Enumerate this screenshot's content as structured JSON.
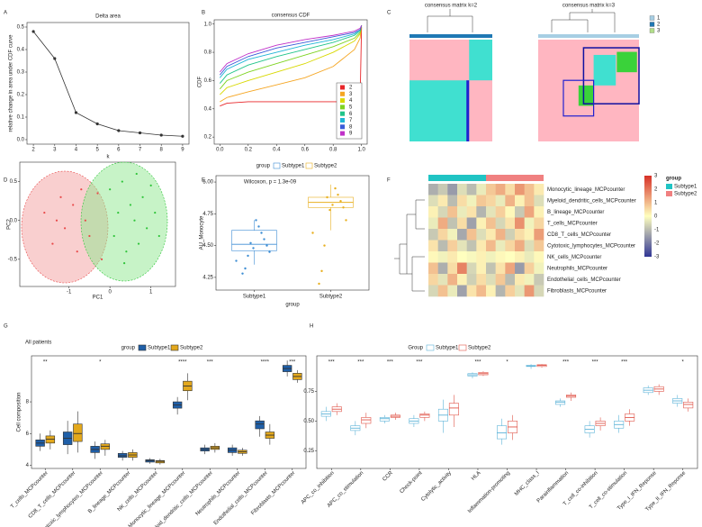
{
  "chart_data": [
    {
      "label": "A",
      "type": "line",
      "title": "Delta area",
      "xlabel": "k",
      "ylabel": "relative change in area under CDF curve",
      "x": [
        2,
        3,
        4,
        5,
        6,
        7,
        8,
        9
      ],
      "values": [
        0.48,
        0.36,
        0.12,
        0.07,
        0.04,
        0.03,
        0.02,
        0.015
      ],
      "color": "#333333",
      "xlim": [
        1.7,
        9.3
      ],
      "ylim": [
        -0.02,
        0.52
      ],
      "xticks": [
        2,
        3,
        4,
        5,
        6,
        7,
        8,
        9
      ],
      "yticks": [
        {
          "value": 0,
          "label": "0.0"
        },
        0.1,
        0.2,
        0.3,
        0.4,
        0.5
      ]
    },
    {
      "label": "B",
      "type": "cdf",
      "title": "consensus CDF",
      "ylabel": "CDF",
      "x": [
        0,
        0.05,
        0.2,
        0.4,
        0.6,
        0.8,
        0.95,
        0.99,
        1.0
      ],
      "xlim": [
        -0.04,
        1.04
      ],
      "ylim": [
        0.15,
        1.03
      ],
      "xticks": [
        {
          "value": 0,
          "label": "0.0"
        },
        0.2,
        0.4,
        0.6,
        0.8,
        {
          "value": 1,
          "label": "1.0"
        }
      ],
      "yticks": [
        0.2,
        0.4,
        0.6,
        0.8,
        {
          "value": 1,
          "label": "1.0"
        }
      ],
      "series": [
        {
          "name": "2",
          "color": "#e8262a",
          "values": [
            0.42,
            0.44,
            0.45,
            0.45,
            0.45,
            0.45,
            0.45,
            0.46,
            0.98
          ]
        },
        {
          "name": "3",
          "color": "#f5a623",
          "values": [
            0.45,
            0.48,
            0.52,
            0.57,
            0.62,
            0.7,
            0.82,
            0.9,
            0.99
          ]
        },
        {
          "name": "4",
          "color": "#d8d800",
          "values": [
            0.5,
            0.55,
            0.6,
            0.66,
            0.72,
            0.8,
            0.88,
            0.93,
            0.99
          ]
        },
        {
          "name": "5",
          "color": "#7ed321",
          "values": [
            0.54,
            0.6,
            0.66,
            0.72,
            0.78,
            0.84,
            0.9,
            0.94,
            0.99
          ]
        },
        {
          "name": "6",
          "color": "#21c48a",
          "values": [
            0.58,
            0.64,
            0.71,
            0.77,
            0.82,
            0.87,
            0.92,
            0.95,
            0.99
          ]
        },
        {
          "name": "7",
          "color": "#1fb5d6",
          "values": [
            0.62,
            0.68,
            0.75,
            0.8,
            0.85,
            0.89,
            0.93,
            0.96,
            0.99
          ]
        },
        {
          "name": "8",
          "color": "#3a5bd9",
          "values": [
            0.64,
            0.7,
            0.77,
            0.83,
            0.87,
            0.91,
            0.94,
            0.96,
            0.99
          ]
        },
        {
          "name": "9",
          "color": "#c030c8",
          "values": [
            0.66,
            0.72,
            0.79,
            0.85,
            0.89,
            0.92,
            0.95,
            0.97,
            0.99
          ]
        }
      ]
    },
    {
      "label": "C",
      "type": "consensus",
      "titles": [
        "consensus matrix k=2",
        "consensus matrix k=3"
      ],
      "series": [
        {
          "name": "1",
          "color": "#a6cee3"
        },
        {
          "name": "2",
          "color": "#1f78b4"
        },
        {
          "name": "3",
          "color": "#b2df8a"
        }
      ]
    },
    {
      "label": "D",
      "type": "scatter",
      "xlabel": "PC1",
      "ylabel": "PC2",
      "xlim": [
        -2.2,
        1.6
      ],
      "ylim": [
        -0.85,
        0.75
      ],
      "xticks": [
        -1,
        0,
        1
      ],
      "yticks": [
        -0.5,
        {
          "value": 0,
          "label": "0.0"
        },
        0.5
      ],
      "series": [
        {
          "color": "#e84a4a",
          "x": [
            -1.6,
            -1.4,
            -1.2,
            -1.1,
            -0.9,
            -0.8,
            -0.6,
            -0.5,
            -0.3,
            -0.2,
            -1.3,
            -0.7
          ],
          "values": [
            0.1,
            -0.3,
            0.3,
            -0.1,
            0.2,
            -0.4,
            0.0,
            -0.2,
            0.35,
            -0.5,
            0.0,
            0.4
          ]
        },
        {
          "color": "#2fc43a",
          "x": [
            0.0,
            0.1,
            0.2,
            0.3,
            0.4,
            0.5,
            0.6,
            0.7,
            0.8,
            0.9,
            1.0,
            1.1,
            1.2,
            0.35,
            0.65
          ],
          "values": [
            0.4,
            -0.2,
            0.1,
            0.5,
            -0.4,
            0.2,
            0.0,
            -0.3,
            0.3,
            -0.1,
            0.45,
            0.1,
            -0.2,
            -0.55,
            0.6
          ]
        }
      ]
    },
    {
      "label": "E",
      "type": "box",
      "title": "Wilcoxon, p = 1.3e-09",
      "legend_title": "group",
      "xlabel": "group",
      "ylabel": "AU_Monocyte",
      "categories": [
        "Subtype1",
        "Subtype2"
      ],
      "colors": [
        "#3f8ed4",
        "#e8b020"
      ],
      "ylim": [
        4.15,
        5.05
      ],
      "yticks": [
        4.25,
        {
          "value": 4.5,
          "label": "4.50"
        },
        4.75,
        {
          "value": 5,
          "label": "5.00"
        }
      ],
      "values": [
        [
          4.35,
          4.46,
          4.51,
          4.62,
          4.7
        ],
        [
          4.62,
          4.8,
          4.84,
          4.88,
          4.98
        ]
      ],
      "points": [
        [
          4.38,
          4.45,
          4.5,
          4.55,
          4.6,
          4.65,
          4.7,
          4.48,
          4.52,
          4.42,
          4.32,
          4.28
        ],
        [
          4.6,
          4.7,
          4.8,
          4.85,
          4.9,
          4.95,
          4.82,
          4.78,
          4.88,
          4.5,
          4.3,
          4.2
        ]
      ]
    },
    {
      "label": "F",
      "type": "heatmap",
      "legend_title": "group",
      "rows": [
        "Monocytic_lineage_MCPcounter",
        "Myeloid_dendritic_cells_MCPcounter",
        "B_lineage_MCPcounter",
        "T_cells_MCPcounter",
        "CD8_T_cells_MCPcounter",
        "Cytotoxic_lymphocytes_MCPcounter",
        "NK_cells_MCPcounter",
        "Neutrophils_MCPcounter",
        "Endothelial_cells_MCPcounter",
        "Fibroblasts_MCPcounter"
      ],
      "clim": [
        -3,
        3
      ],
      "colormap": [
        "#313695",
        "#ffffbf",
        "#d73027"
      ],
      "colorbar_ticks": [
        3,
        2,
        1,
        0,
        -1,
        -2,
        -3
      ],
      "series": [
        {
          "name": "Subtype1",
          "color": "#20c4c4",
          "values": [
            [
              -1.2,
              -0.8,
              -1.5,
              -0.5,
              -1,
              -0.3
            ],
            [
              -0.5,
              0.3,
              -1,
              0.5,
              -0.2,
              0.8
            ],
            [
              0.2,
              -0.6,
              0.9,
              -0.3,
              0.4,
              -1.1
            ],
            [
              -0.3,
              1.2,
              -0.9,
              0.5,
              -1.4,
              0.2
            ],
            [
              -0.8,
              0.6,
              -0.2,
              -1.3,
              0.9,
              -0.5
            ],
            [
              0.4,
              -1,
              0.7,
              -0.4,
              -0.9,
              0.3
            ],
            [
              0.1,
              -0.2,
              0.3,
              0,
              -0.1,
              0.2
            ],
            [
              0.9,
              -1.2,
              0.5,
              1.8,
              -0.6,
              0.2
            ],
            [
              0.6,
              -0.4,
              1.1,
              0.2,
              -0.7,
              0.5
            ],
            [
              -0.6,
              0.9,
              -0.3,
              -1.4,
              0.4,
              1
            ]
          ]
        },
        {
          "name": "Subtype2",
          "color": "#f08080",
          "values": [
            [
              0.8,
              1.2,
              0.5,
              1.5,
              0.9,
              0.3
            ],
            [
              0.6,
              -0.3,
              1.1,
              0.2,
              0.9,
              -0.5
            ],
            [
              -0.4,
              0.7,
              0.1,
              -0.8,
              1.3,
              0.2
            ],
            [
              0.9,
              -0.6,
              0.4,
              1.6,
              -0.2,
              0.6
            ],
            [
              0.3,
              1.1,
              -0.7,
              0.5,
              0.2,
              1.4
            ],
            [
              1,
              -0.3,
              0.6,
              1.2,
              -0.5,
              0.8
            ],
            [
              -0.2,
              0.1,
              0,
              0.2,
              -0.3,
              0.1
            ],
            [
              -0.9,
              0.4,
              1.3,
              -1.5,
              0.7,
              -0.2
            ],
            [
              -0.5,
              0.8,
              -1,
              0.3,
              -0.2,
              -0.8
            ],
            [
              0.2,
              -1.1,
              0.7,
              -0.4,
              1.5,
              -0.6
            ]
          ]
        }
      ]
    },
    {
      "label": "G",
      "type": "grouped_box",
      "title": "All patients",
      "legend_title": "group",
      "ylabel": "Cell composition",
      "filled": true,
      "categories": [
        "T_cells_MCPcounter",
        "CD8_T_cells_MCPcounter",
        "Cytotoxic_lymphocytes_MCPcounter",
        "B_lineage_MCPcounter",
        "NK_cells_MCPcounter",
        "Monocytic_lineage_MCPcounter",
        "Myeloid_dendritic_cells_MCPcounter",
        "Neutrophils_MCPcounter",
        "Endothelial_cells_MCPcounter",
        "Fibroblasts_MCPcounter"
      ],
      "significance": [
        "**",
        null,
        "*",
        null,
        null,
        "****",
        "***",
        null,
        "****",
        "***"
      ],
      "ylim": [
        3.8,
        10.9
      ],
      "yticks": [
        4,
        6,
        8
      ],
      "series": [
        {
          "name": "Subtype1",
          "color": "#1f5fa8",
          "values": [
            [
              4.9,
              5.2,
              5.4,
              5.6,
              6.0
            ],
            [
              4.7,
              5.3,
              5.7,
              6.1,
              6.8
            ],
            [
              4.4,
              4.8,
              5.0,
              5.2,
              5.5
            ],
            [
              4.3,
              4.5,
              4.6,
              4.75,
              4.9
            ],
            [
              4.1,
              4.2,
              4.3,
              4.35,
              4.45
            ],
            [
              7.2,
              7.6,
              7.8,
              8.0,
              8.3
            ],
            [
              4.7,
              4.9,
              5.0,
              5.1,
              5.3
            ],
            [
              4.6,
              4.8,
              4.95,
              5.1,
              5.3
            ],
            [
              5.8,
              6.3,
              6.6,
              6.8,
              7.1
            ],
            [
              9.6,
              9.9,
              10.1,
              10.3,
              10.6
            ]
          ]
        },
        {
          "name": "Subtype2",
          "color": "#e3a81c",
          "values": [
            [
              5.0,
              5.4,
              5.65,
              5.85,
              6.2
            ],
            [
              4.8,
              5.5,
              6.0,
              6.6,
              7.4
            ],
            [
              4.6,
              5.0,
              5.2,
              5.35,
              5.6
            ],
            [
              4.3,
              4.5,
              4.65,
              4.8,
              5.0
            ],
            [
              4.05,
              4.15,
              4.25,
              4.3,
              4.4
            ],
            [
              8.1,
              8.7,
              9.0,
              9.3,
              9.8
            ],
            [
              4.8,
              5.0,
              5.1,
              5.2,
              5.4
            ],
            [
              4.6,
              4.75,
              4.85,
              4.95,
              5.1
            ],
            [
              5.3,
              5.7,
              5.9,
              6.1,
              6.6
            ],
            [
              9.2,
              9.4,
              9.6,
              9.8,
              10.0
            ]
          ]
        }
      ]
    },
    {
      "label": "H",
      "type": "grouped_box",
      "legend_title": "Group",
      "filled": false,
      "categories": [
        "APC_co_inhibition",
        "APC_co_stimulation",
        "CCR",
        "Check-point",
        "Cytolytic_activity",
        "HLA",
        "Inflammation-promoting",
        "MHC_class_I",
        "Parainflammation",
        "T_cell_co-inhibition",
        "T_cell_co-stimulation",
        "Type_I_IFN_Reponse",
        "Type_II_IFN_Reponse"
      ],
      "significance": [
        "***",
        "***",
        "***",
        "***",
        null,
        "***",
        "*",
        null,
        "***",
        "***",
        "***",
        null,
        "*"
      ],
      "ylim": [
        0.1,
        1.05
      ],
      "yticks": [
        0.25,
        {
          "value": 0.5,
          "label": "0.50"
        },
        0.75
      ],
      "series": [
        {
          "name": "Subtype1",
          "color": "#5fb4d8",
          "values": [
            [
              0.5,
              0.54,
              0.56,
              0.58,
              0.62
            ],
            [
              0.38,
              0.42,
              0.44,
              0.46,
              0.5
            ],
            [
              0.48,
              0.5,
              0.52,
              0.53,
              0.55
            ],
            [
              0.45,
              0.48,
              0.5,
              0.52,
              0.55
            ],
            [
              0.4,
              0.5,
              0.55,
              0.6,
              0.68
            ],
            [
              0.86,
              0.88,
              0.89,
              0.9,
              0.91
            ],
            [
              0.3,
              0.35,
              0.4,
              0.46,
              0.52
            ],
            [
              0.94,
              0.96,
              0.965,
              0.97,
              0.98
            ],
            [
              0.62,
              0.64,
              0.66,
              0.67,
              0.69
            ],
            [
              0.36,
              0.4,
              0.43,
              0.46,
              0.5
            ],
            [
              0.4,
              0.44,
              0.47,
              0.5,
              0.55
            ],
            [
              0.72,
              0.74,
              0.76,
              0.78,
              0.8
            ],
            [
              0.62,
              0.65,
              0.67,
              0.69,
              0.72
            ]
          ]
        },
        {
          "name": "Subtype2",
          "color": "#e0564a",
          "values": [
            [
              0.55,
              0.58,
              0.6,
              0.62,
              0.65
            ],
            [
              0.44,
              0.48,
              0.51,
              0.53,
              0.57
            ],
            [
              0.51,
              0.53,
              0.54,
              0.55,
              0.57
            ],
            [
              0.5,
              0.53,
              0.55,
              0.56,
              0.58
            ],
            [
              0.45,
              0.55,
              0.61,
              0.65,
              0.72
            ],
            [
              0.88,
              0.89,
              0.9,
              0.91,
              0.92
            ],
            [
              0.34,
              0.4,
              0.45,
              0.5,
              0.55
            ],
            [
              0.95,
              0.96,
              0.97,
              0.975,
              0.98
            ],
            [
              0.67,
              0.7,
              0.71,
              0.72,
              0.74
            ],
            [
              0.42,
              0.46,
              0.48,
              0.5,
              0.53
            ],
            [
              0.46,
              0.5,
              0.53,
              0.56,
              0.6
            ],
            [
              0.72,
              0.75,
              0.77,
              0.79,
              0.81
            ],
            [
              0.58,
              0.61,
              0.64,
              0.66,
              0.69
            ]
          ]
        }
      ]
    }
  ]
}
